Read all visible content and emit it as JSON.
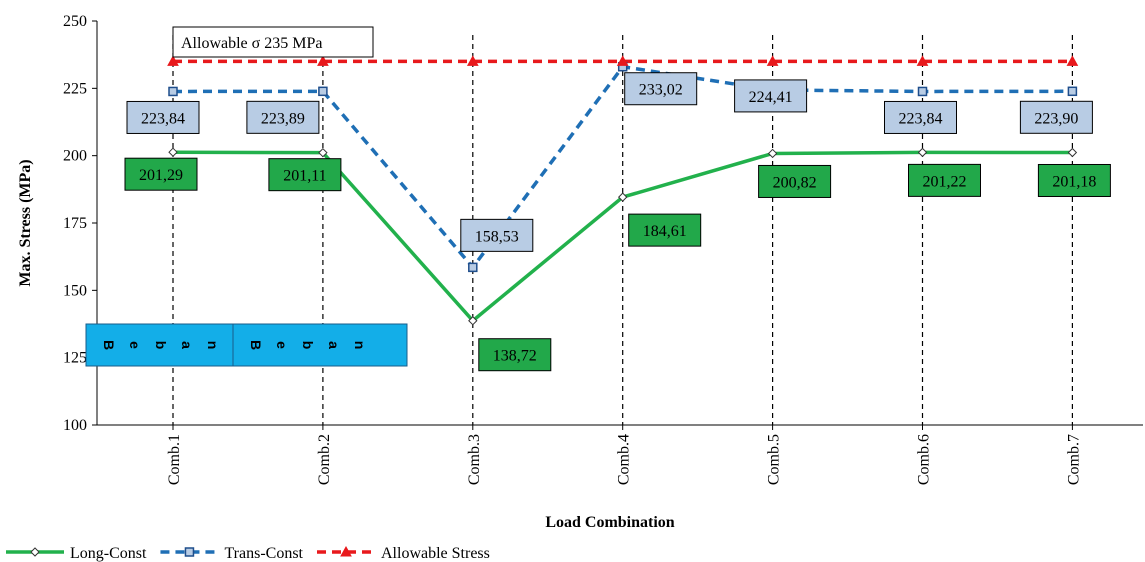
{
  "chart_data": {
    "type": "line",
    "title": "",
    "xlabel": "Load Combination",
    "ylabel": "Max. Stress (MPa)",
    "ylim": [
      100,
      250
    ],
    "yticks": [
      100,
      125,
      150,
      175,
      200,
      225,
      250
    ],
    "categories": [
      "Comb.1",
      "Comb.2",
      "Comb.3",
      "Comb.4",
      "Comb.5",
      "Comb.6",
      "Comb.7"
    ],
    "series": [
      {
        "name": "Long-Const",
        "color": "#22b14c",
        "dash": "solid",
        "marker": "diamond",
        "values": [
          201.29,
          201.11,
          138.72,
          184.61,
          200.82,
          201.22,
          201.18
        ],
        "labels": [
          "201,29",
          "201,11",
          "138,72",
          "184,61",
          "200,82",
          "201,22",
          "201,18"
        ]
      },
      {
        "name": "Trans-Const",
        "color": "#1f6fb5",
        "dash": "dashed",
        "marker": "square",
        "values": [
          223.84,
          223.89,
          158.53,
          233.02,
          224.41,
          223.84,
          223.9
        ],
        "labels": [
          "223,84",
          "223,89",
          "158,53",
          "233,02",
          "224,41",
          "223,84",
          "223,90"
        ]
      },
      {
        "name": "Allowable Stress",
        "color": "#e8191c",
        "dash": "dashed",
        "marker": "triangle",
        "values": [
          235,
          235,
          235,
          235,
          235,
          235,
          235
        ]
      }
    ],
    "annotations": [
      "Allowable σ 235 MPa"
    ],
    "overlay_boxes": [
      "Beban",
      "Beban"
    ],
    "grid": "vertical dashed at categories",
    "legend_position": "bottom-left"
  }
}
